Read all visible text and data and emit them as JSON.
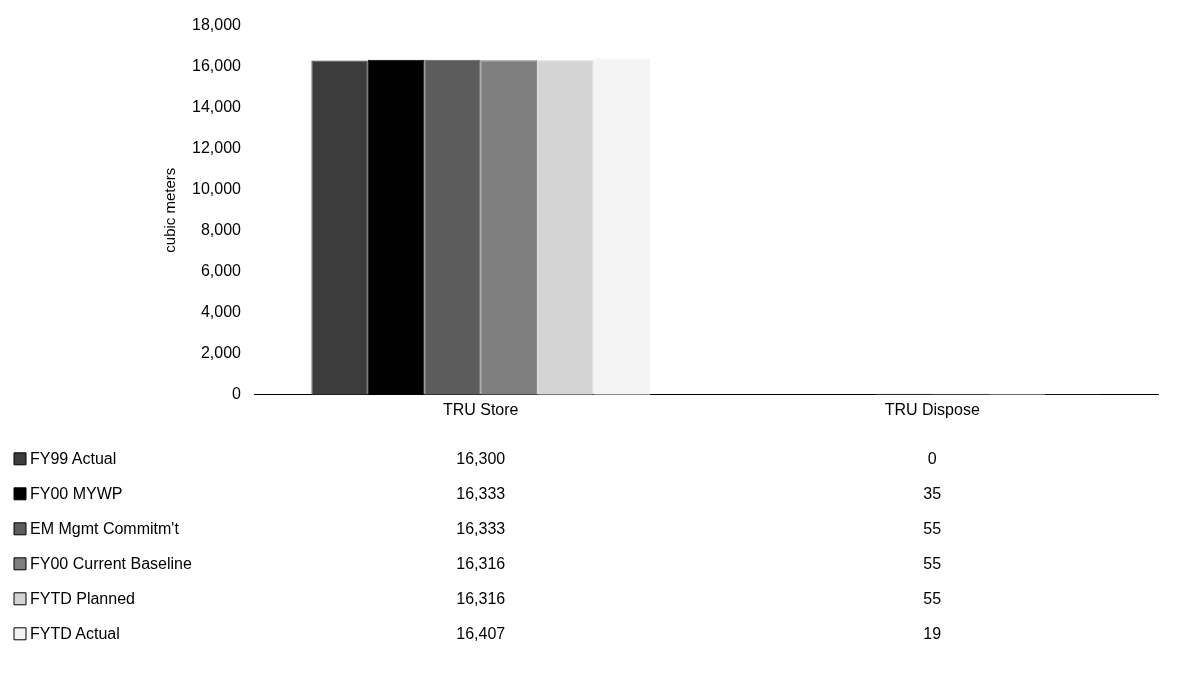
{
  "chart_data": {
    "type": "bar",
    "ylabel": "cubic meters",
    "categories": [
      "TRU Store",
      "TRU Dispose"
    ],
    "series": [
      {
        "name": "FY99 Actual",
        "color": "#3c3c3c",
        "values": [
          16300,
          0
        ],
        "value_labels": [
          "16,300",
          "0"
        ]
      },
      {
        "name": "FY00 MYWP",
        "color": "#000000",
        "values": [
          16333,
          35
        ],
        "value_labels": [
          "16,333",
          "35"
        ]
      },
      {
        "name": "EM Mgmt Commitm't",
        "color": "#5c5c5c",
        "values": [
          16333,
          55
        ],
        "value_labels": [
          "16,333",
          "55"
        ]
      },
      {
        "name": "FY00 Current Baseline",
        "color": "#7e7e7e",
        "values": [
          16316,
          55
        ],
        "value_labels": [
          "16,316",
          "55"
        ]
      },
      {
        "name": "FYTD Planned",
        "color": "#d4d4d4",
        "values": [
          16316,
          55
        ],
        "value_labels": [
          "16,316",
          "55"
        ]
      },
      {
        "name": "FYTD Actual",
        "color": "#f4f4f4",
        "values": [
          16407,
          19
        ],
        "value_labels": [
          "16,407",
          "19"
        ]
      }
    ],
    "ylim": [
      0,
      18000
    ],
    "yticks": [
      {
        "value": 0,
        "label": "0"
      },
      {
        "value": 2000,
        "label": "2,000"
      },
      {
        "value": 4000,
        "label": "4,000"
      },
      {
        "value": 6000,
        "label": "6,000"
      },
      {
        "value": 8000,
        "label": "8,000"
      },
      {
        "value": 10000,
        "label": "10,000"
      },
      {
        "value": 12000,
        "label": "12,000"
      },
      {
        "value": 14000,
        "label": "14,000"
      },
      {
        "value": 16000,
        "label": "16,000"
      },
      {
        "value": 18000,
        "label": "18,000"
      }
    ],
    "grid": false,
    "legend": "bottom left"
  }
}
